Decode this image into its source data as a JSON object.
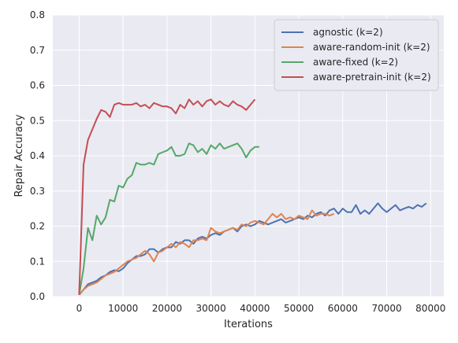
{
  "chart_data": {
    "type": "line",
    "title": "",
    "xlabel": "Iterations",
    "ylabel": "Repair Accuracy",
    "xlim": [
      -6000,
      83000
    ],
    "ylim": [
      0,
      0.8
    ],
    "xticks": [
      0,
      10000,
      20000,
      30000,
      40000,
      50000,
      60000,
      70000,
      80000
    ],
    "yticks": [
      0.0,
      0.1,
      0.2,
      0.3,
      0.4,
      0.5,
      0.6,
      0.7,
      0.8
    ],
    "xtick_labels": [
      "0",
      "10000",
      "20000",
      "30000",
      "40000",
      "50000",
      "60000",
      "70000",
      "80000"
    ],
    "ytick_labels": [
      "0.0",
      "0.1",
      "0.2",
      "0.3",
      "0.4",
      "0.5",
      "0.6",
      "0.7",
      "0.8"
    ],
    "grid": true,
    "legend_position": "top-right",
    "background": "#eaeaf2",
    "series": [
      {
        "name": "agnostic (k=2)",
        "color": "#4c72b0",
        "x": [
          0,
          1000,
          2000,
          3000,
          4000,
          5000,
          6000,
          7000,
          8000,
          9000,
          10000,
          11000,
          12000,
          13000,
          14000,
          15000,
          16000,
          17000,
          18000,
          19000,
          20000,
          21000,
          22000,
          23000,
          24000,
          25000,
          26000,
          27000,
          28000,
          29000,
          30000,
          31000,
          32000,
          33000,
          34000,
          35000,
          36000,
          37000,
          38000,
          39000,
          40000,
          41000,
          42000,
          43000,
          44000,
          45000,
          46000,
          47000,
          48000,
          49000,
          50000,
          51000,
          52000,
          53000,
          54000,
          55000,
          56000,
          57000,
          58000,
          59000,
          60000,
          61000,
          62000,
          63000,
          64000,
          65000,
          66000,
          67000,
          68000,
          69000,
          70000,
          71000,
          72000,
          73000,
          74000,
          75000,
          76000,
          77000,
          78000,
          79000
        ],
        "y": [
          0.005,
          0.02,
          0.035,
          0.04,
          0.045,
          0.055,
          0.06,
          0.07,
          0.075,
          0.072,
          0.08,
          0.095,
          0.105,
          0.115,
          0.115,
          0.12,
          0.135,
          0.135,
          0.125,
          0.135,
          0.14,
          0.14,
          0.155,
          0.15,
          0.16,
          0.16,
          0.15,
          0.165,
          0.17,
          0.165,
          0.175,
          0.18,
          0.175,
          0.185,
          0.19,
          0.195,
          0.185,
          0.2,
          0.205,
          0.2,
          0.205,
          0.215,
          0.21,
          0.205,
          0.21,
          0.215,
          0.22,
          0.21,
          0.215,
          0.22,
          0.225,
          0.22,
          0.23,
          0.225,
          0.235,
          0.24,
          0.23,
          0.245,
          0.25,
          0.235,
          0.25,
          0.24,
          0.24,
          0.26,
          0.235,
          0.245,
          0.235,
          0.25,
          0.265,
          0.25,
          0.24,
          0.25,
          0.26,
          0.245,
          0.25,
          0.255,
          0.25,
          0.26,
          0.255,
          0.265
        ]
      },
      {
        "name": "aware-random-init (k=2)",
        "color": "#dd8452",
        "x": [
          0,
          1000,
          2000,
          3000,
          4000,
          5000,
          6000,
          7000,
          8000,
          9000,
          10000,
          11000,
          12000,
          13000,
          14000,
          15000,
          16000,
          17000,
          18000,
          19000,
          20000,
          21000,
          22000,
          23000,
          24000,
          25000,
          26000,
          27000,
          28000,
          29000,
          30000,
          31000,
          32000,
          33000,
          34000,
          35000,
          36000,
          37000,
          38000,
          39000,
          40000,
          41000,
          42000,
          43000,
          44000,
          45000,
          46000,
          47000,
          48000,
          49000,
          50000,
          51000,
          52000,
          53000,
          54000,
          55000,
          56000,
          57000,
          58000
        ],
        "y": [
          0.005,
          0.02,
          0.03,
          0.035,
          0.04,
          0.05,
          0.06,
          0.065,
          0.07,
          0.08,
          0.09,
          0.1,
          0.105,
          0.11,
          0.12,
          0.13,
          0.12,
          0.1,
          0.125,
          0.13,
          0.14,
          0.15,
          0.14,
          0.155,
          0.15,
          0.14,
          0.16,
          0.16,
          0.165,
          0.16,
          0.195,
          0.185,
          0.18,
          0.185,
          0.19,
          0.195,
          0.19,
          0.205,
          0.2,
          0.21,
          0.215,
          0.21,
          0.205,
          0.22,
          0.235,
          0.225,
          0.235,
          0.22,
          0.225,
          0.22,
          0.23,
          0.225,
          0.22,
          0.245,
          0.23,
          0.235,
          0.235,
          0.23,
          0.235
        ]
      },
      {
        "name": "aware-fixed (k=2)",
        "color": "#55a868",
        "x": [
          0,
          1000,
          2000,
          3000,
          4000,
          5000,
          6000,
          7000,
          8000,
          9000,
          10000,
          11000,
          12000,
          13000,
          14000,
          15000,
          16000,
          17000,
          18000,
          19000,
          20000,
          21000,
          22000,
          23000,
          24000,
          25000,
          26000,
          27000,
          28000,
          29000,
          30000,
          31000,
          32000,
          33000,
          34000,
          35000,
          36000,
          37000,
          38000,
          39000,
          40000,
          41000
        ],
        "y": [
          0.005,
          0.08,
          0.195,
          0.16,
          0.23,
          0.205,
          0.225,
          0.275,
          0.27,
          0.315,
          0.31,
          0.335,
          0.345,
          0.38,
          0.375,
          0.375,
          0.38,
          0.375,
          0.405,
          0.41,
          0.415,
          0.425,
          0.4,
          0.4,
          0.405,
          0.435,
          0.43,
          0.41,
          0.42,
          0.405,
          0.43,
          0.42,
          0.435,
          0.42,
          0.425,
          0.43,
          0.435,
          0.42,
          0.395,
          0.415,
          0.425,
          0.425
        ]
      },
      {
        "name": "aware-pretrain-init (k=2)",
        "color": "#c44e52",
        "x": [
          0,
          1000,
          2000,
          3000,
          4000,
          5000,
          6000,
          7000,
          8000,
          9000,
          10000,
          11000,
          12000,
          13000,
          14000,
          15000,
          16000,
          17000,
          18000,
          19000,
          20000,
          21000,
          22000,
          23000,
          24000,
          25000,
          26000,
          27000,
          28000,
          29000,
          30000,
          31000,
          32000,
          33000,
          34000,
          35000,
          36000,
          37000,
          38000,
          39000,
          40000
        ],
        "y": [
          0.005,
          0.375,
          0.445,
          0.475,
          0.505,
          0.53,
          0.525,
          0.51,
          0.545,
          0.55,
          0.545,
          0.545,
          0.545,
          0.55,
          0.54,
          0.545,
          0.535,
          0.55,
          0.545,
          0.54,
          0.54,
          0.535,
          0.52,
          0.545,
          0.535,
          0.56,
          0.545,
          0.555,
          0.54,
          0.555,
          0.56,
          0.545,
          0.555,
          0.545,
          0.54,
          0.555,
          0.545,
          0.54,
          0.53,
          0.545,
          0.56
        ]
      }
    ]
  }
}
